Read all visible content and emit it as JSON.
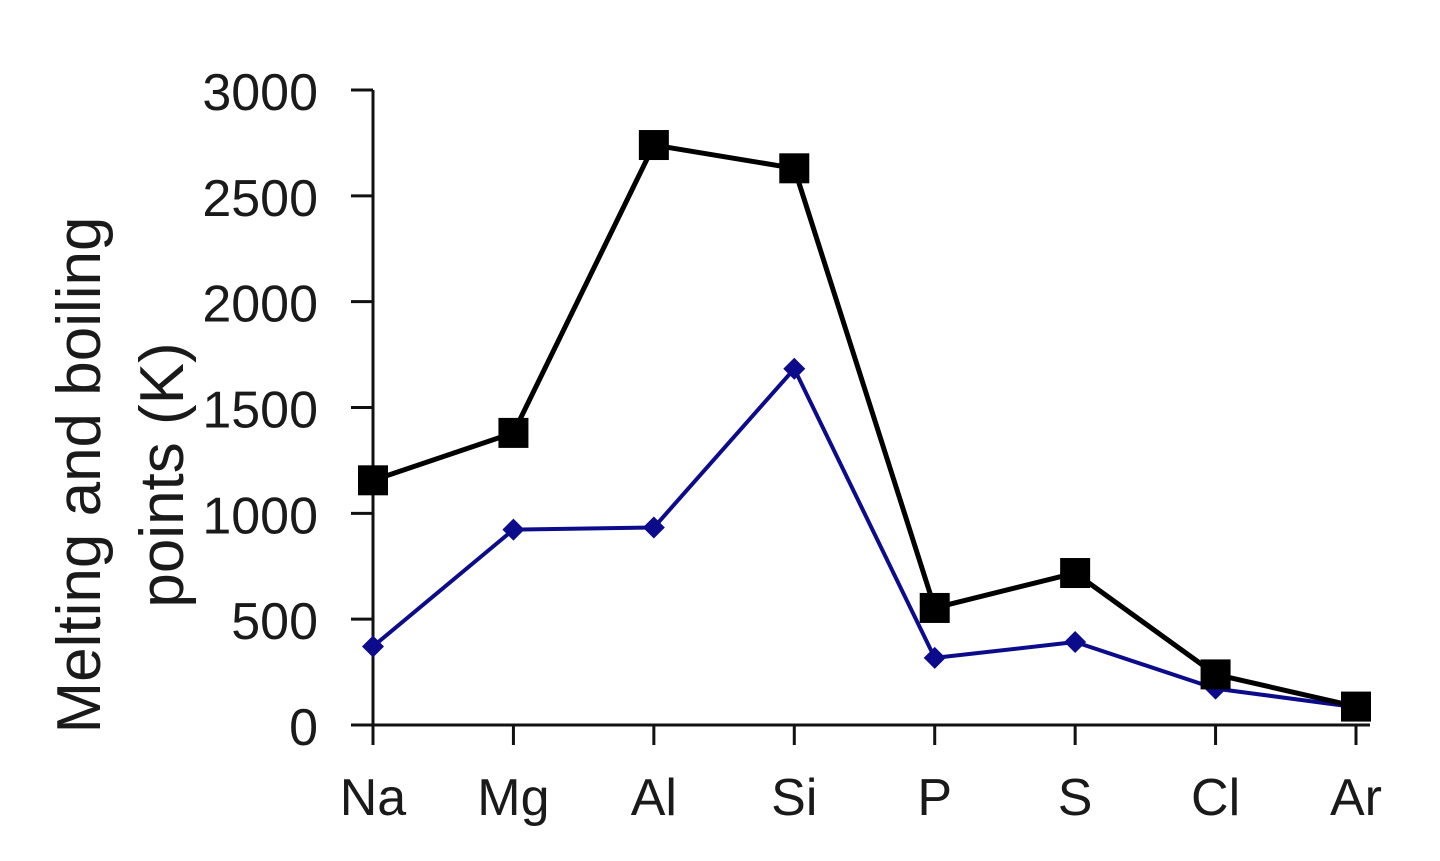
{
  "chart_data": {
    "type": "line",
    "title": "",
    "xlabel": "",
    "ylabel": "Melting and boiling points (K)",
    "ylabel_lines": [
      "Melting and boiling",
      "points (K)"
    ],
    "categories": [
      "Na",
      "Mg",
      "Al",
      "Si",
      "P",
      "S",
      "Cl",
      "Ar"
    ],
    "ylim": [
      0,
      3000
    ],
    "yticks": [
      0,
      500,
      1000,
      1500,
      2000,
      2500,
      3000
    ],
    "grid": false,
    "legend": "none",
    "series": [
      {
        "values": [
          1156,
          1380,
          2740,
          2630,
          553,
          718,
          239,
          87
        ],
        "color": "#000000",
        "marker": "square"
      },
      {
        "values": [
          371,
          923,
          933,
          1683,
          317,
          392,
          172,
          84
        ],
        "color": "#0b0b8c",
        "marker": "diamond"
      }
    ]
  }
}
